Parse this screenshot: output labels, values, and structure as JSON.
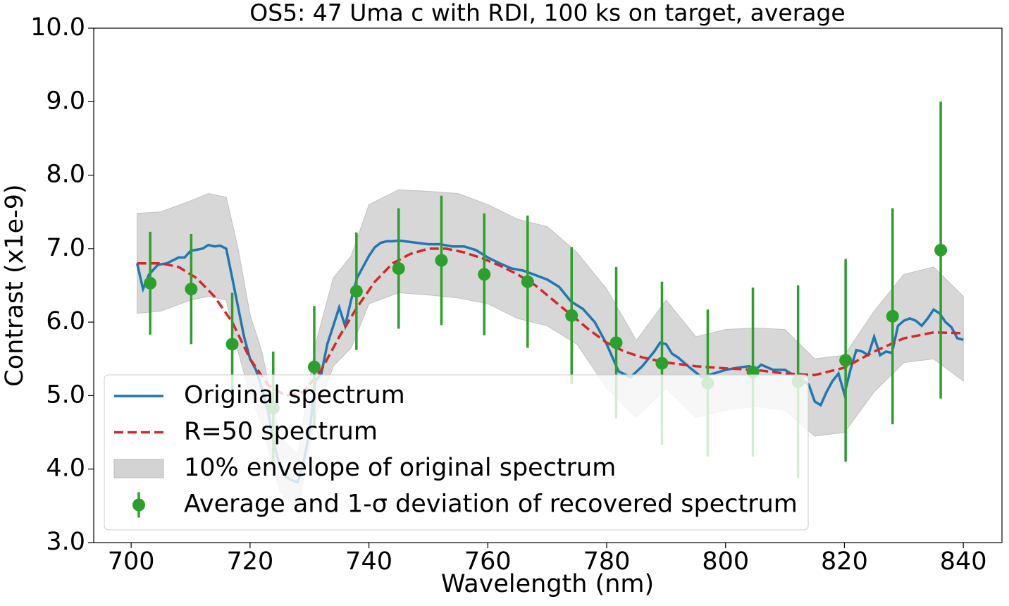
{
  "chart_data": {
    "type": "line",
    "title": "OS5: 47 Uma c with RDI, 100 ks on target, average",
    "x_label": "Wavelength (nm)",
    "y_label": "Contrast (x1e-9)",
    "xlim": [
      693.7,
      846.5
    ],
    "ylim": [
      3.0,
      10.0
    ],
    "xticks": [
      700,
      720,
      740,
      760,
      780,
      800,
      820,
      840
    ],
    "yticks": [
      {
        "value": 3,
        "label": "3.0"
      },
      {
        "value": 4,
        "label": "4.0"
      },
      {
        "value": 5,
        "label": "5.0"
      },
      {
        "value": 6,
        "label": "6.0"
      },
      {
        "value": 7,
        "label": "7.0"
      },
      {
        "value": 8,
        "label": "8.0"
      },
      {
        "value": 9,
        "label": "9.0"
      },
      {
        "value": 10,
        "label": "10.0"
      }
    ],
    "legend": "lower left",
    "series": [
      {
        "name": "Original spectrum",
        "type": "line",
        "color": "#1f77b4",
        "x": [
          701,
          702,
          703,
          704.5,
          706,
          708,
          709,
          710,
          712,
          713,
          714,
          715,
          716,
          717,
          718,
          719,
          720,
          721,
          722,
          723,
          724,
          725,
          726,
          727,
          728,
          729,
          730,
          731,
          732,
          733,
          734,
          735,
          736,
          737,
          738,
          739,
          740,
          741,
          742,
          743,
          744,
          745,
          746,
          748,
          750,
          752,
          754,
          756,
          758,
          760,
          762,
          764,
          766,
          768,
          770,
          772,
          774,
          776,
          778,
          780,
          782,
          784,
          786,
          788,
          789,
          790,
          791,
          792,
          794,
          796,
          798,
          800,
          802,
          804,
          805,
          806,
          808,
          810,
          812,
          814,
          815,
          816,
          817,
          818,
          819,
          820,
          821,
          822,
          823,
          824,
          825,
          826,
          827,
          828,
          829,
          830,
          831,
          832,
          833,
          834,
          835,
          836,
          837,
          838,
          839,
          840
        ],
        "values": [
          6.8,
          6.45,
          6.65,
          6.78,
          6.8,
          6.88,
          6.88,
          6.97,
          7.0,
          7.05,
          7.03,
          7.04,
          7.0,
          6.6,
          6.2,
          5.8,
          5.5,
          5.35,
          5.1,
          4.8,
          4.35,
          4.05,
          3.9,
          3.85,
          3.82,
          4.1,
          4.5,
          5.2,
          5.3,
          5.7,
          5.95,
          6.2,
          5.95,
          6.3,
          6.6,
          6.75,
          6.9,
          7.02,
          7.08,
          7.1,
          7.1,
          7.11,
          7.1,
          7.08,
          7.06,
          7.06,
          7.03,
          7.03,
          6.98,
          6.88,
          6.8,
          6.73,
          6.7,
          6.64,
          6.58,
          6.48,
          6.28,
          6.18,
          6.0,
          5.7,
          5.33,
          5.25,
          5.4,
          5.6,
          5.72,
          5.7,
          5.57,
          5.52,
          5.38,
          5.25,
          5.3,
          5.35,
          5.38,
          5.4,
          5.35,
          5.42,
          5.35,
          5.35,
          5.25,
          5.15,
          4.92,
          4.87,
          5.05,
          5.2,
          5.3,
          5.02,
          5.35,
          5.62,
          5.6,
          5.55,
          5.8,
          5.55,
          5.6,
          5.58,
          5.95,
          6.02,
          6.05,
          6.02,
          5.95,
          6.05,
          6.17,
          6.12,
          6.0,
          5.93,
          5.78,
          5.76
        ]
      },
      {
        "name": "R=50 spectrum",
        "type": "dashed",
        "color": "#d62728",
        "x": [
          701,
          705,
          708,
          711,
          714,
          717,
          720,
          723,
          726,
          729,
          732,
          735,
          738,
          741,
          744,
          747,
          750,
          753,
          756,
          759,
          762,
          765,
          768,
          771,
          774,
          777,
          780,
          783,
          786,
          790,
          795,
          800,
          805,
          810,
          815,
          820,
          825,
          830,
          835,
          840
        ],
        "values": [
          6.8,
          6.8,
          6.75,
          6.6,
          6.35,
          6.0,
          5.5,
          5.15,
          5.0,
          5.05,
          5.35,
          5.8,
          6.2,
          6.55,
          6.8,
          6.93,
          7.0,
          7.0,
          6.95,
          6.87,
          6.77,
          6.65,
          6.5,
          6.3,
          6.1,
          5.9,
          5.72,
          5.6,
          5.52,
          5.45,
          5.4,
          5.37,
          5.35,
          5.3,
          5.28,
          5.38,
          5.6,
          5.78,
          5.86,
          5.85
        ]
      },
      {
        "name": "10% envelope of original spectrum",
        "type": "area",
        "color": "#d3d3d3",
        "x": [
          701,
          705,
          710,
          713,
          716,
          718,
          720,
          722,
          725,
          728,
          731,
          734,
          737,
          740,
          745,
          750,
          755,
          760,
          765,
          770,
          775,
          780,
          785,
          790,
          795,
          800,
          805,
          810,
          815,
          820,
          825,
          830,
          835,
          840
        ],
        "upper": [
          7.48,
          7.5,
          7.65,
          7.75,
          7.7,
          7.0,
          6.1,
          5.6,
          4.45,
          4.2,
          5.7,
          6.6,
          6.9,
          7.6,
          7.8,
          7.78,
          7.75,
          7.6,
          7.4,
          7.3,
          6.95,
          6.45,
          5.75,
          6.3,
          5.8,
          5.9,
          5.92,
          5.9,
          5.5,
          5.55,
          6.15,
          6.65,
          6.75,
          6.35
        ],
        "lower": [
          6.12,
          6.15,
          6.3,
          6.35,
          6.3,
          5.6,
          5.0,
          4.6,
          3.7,
          3.45,
          4.7,
          5.4,
          5.65,
          6.25,
          6.4,
          6.37,
          6.33,
          6.25,
          6.05,
          5.95,
          5.7,
          5.1,
          4.7,
          5.1,
          4.7,
          4.8,
          4.85,
          4.8,
          4.45,
          4.5,
          5.05,
          5.45,
          5.5,
          5.2
        ]
      },
      {
        "name": "Average and 1-σ deviation of recovered spectrum",
        "type": "errorbar",
        "color": "#2ca02c",
        "x": [
          703.2,
          710.1,
          717.0,
          723.9,
          730.8,
          737.9,
          745.0,
          752.2,
          759.4,
          766.7,
          774.1,
          781.6,
          789.3,
          797.0,
          804.6,
          812.2,
          820.2,
          828.1,
          836.2
        ],
        "values": [
          6.53,
          6.45,
          5.7,
          4.83,
          5.39,
          6.42,
          6.73,
          6.84,
          6.65,
          6.55,
          6.09,
          5.72,
          5.44,
          5.17,
          5.32,
          5.19,
          5.48,
          6.08,
          6.98
        ],
        "errors": [
          0.7,
          0.75,
          0.7,
          0.77,
          0.83,
          0.8,
          0.82,
          0.88,
          0.83,
          0.9,
          0.93,
          1.03,
          1.11,
          1.0,
          1.15,
          1.31,
          1.38,
          1.47,
          2.02
        ]
      }
    ]
  }
}
